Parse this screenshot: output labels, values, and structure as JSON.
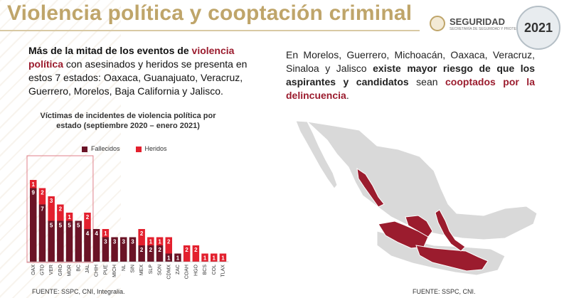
{
  "header": {
    "title": "Violencia política y cooptación criminal",
    "logo_text": "SEGURIDAD",
    "logo_sub": "SECRETARÍA DE SEGURIDAD Y PROTECCIÓN CIUDADANA",
    "year_text": "2021"
  },
  "left": {
    "p1_bold": "Más de la mitad de los eventos de",
    "p1_red": "violencia política",
    "p1_rest": "con asesinados y heridos se presenta en estos 7 estados: Oaxaca, Guanajuato, Veracruz, Guerrero, Morelos, Baja California y Jalisco."
  },
  "right": {
    "p_start": "En Morelos, Guerrero, Michoacán, Oaxaca, Veracruz, Sinaloa y Jalisco",
    "p_bold": "existe mayor riesgo de que los aspirantes y candidatos",
    "p_mid": "sean",
    "p_red": "cooptados por la delincuencia",
    "p_end": "."
  },
  "chart_data": {
    "type": "bar",
    "title": "Víctimas de incidentes de violencia política por estado (septiembre 2020 – enero 2021)",
    "categories": [
      "OAX",
      "GTO",
      "VER",
      "GRO",
      "MOR",
      "BC",
      "JAL",
      "CHIH",
      "PUE",
      "MICH",
      "NL",
      "SIN",
      "MEX",
      "SLP",
      "SON",
      "CDMX",
      "ZAC",
      "COAH",
      "HGO",
      "BCS",
      "COL",
      "TLAX"
    ],
    "series": [
      {
        "name": "Fallecidos",
        "color": "#6b1326",
        "values": [
          9,
          7,
          5,
          5,
          5,
          5,
          4,
          4,
          3,
          3,
          3,
          3,
          2,
          2,
          2,
          1,
          1,
          0,
          0,
          0,
          0,
          0
        ]
      },
      {
        "name": "Heridos",
        "color": "#e3202e",
        "values": [
          1,
          2,
          3,
          2,
          1,
          0,
          2,
          0,
          1,
          0,
          0,
          0,
          2,
          1,
          1,
          2,
          0,
          2,
          2,
          1,
          1,
          1
        ]
      }
    ],
    "highlight_count": 7
  },
  "footer": {
    "left": "FUENTE: SSPC, CNI, Integralia.",
    "right": "FUENTE: SSPC, CNI."
  },
  "colors": {
    "gold": "#bfa56a",
    "wine": "#9b1c2e",
    "map_gray": "#d9d9d9",
    "map_red": "#9b1c2e"
  }
}
